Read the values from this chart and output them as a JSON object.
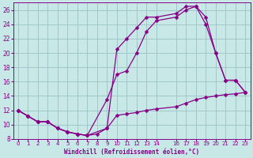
{
  "background_color": "#c8e8e8",
  "grid_color": "#a0c8c8",
  "line_color": "#880088",
  "xlim": [
    -0.5,
    23.5
  ],
  "ylim": [
    8,
    27
  ],
  "yticks": [
    8,
    10,
    12,
    14,
    16,
    18,
    20,
    22,
    24,
    26
  ],
  "xtick_vals": [
    0,
    1,
    2,
    3,
    4,
    5,
    6,
    7,
    8,
    9,
    10,
    11,
    12,
    13,
    14,
    16,
    17,
    18,
    19,
    20,
    21,
    22,
    23
  ],
  "xtick_labels": [
    "0",
    "1",
    "2",
    "3",
    "4",
    "5",
    "6",
    "7",
    "8",
    "9",
    "10",
    "11",
    "12",
    "13",
    "14",
    "16",
    "17",
    "18",
    "19",
    "20",
    "21",
    "22",
    "23"
  ],
  "xlabel": "Windchill (Refroidissement éolien,°C)",
  "line1_x": [
    0,
    1,
    2,
    3,
    4,
    5,
    6,
    7,
    8,
    9,
    10,
    11,
    12,
    13,
    14,
    16,
    17,
    18,
    19,
    20,
    21,
    22,
    23
  ],
  "line1_y": [
    12,
    11.2,
    10.4,
    10.4,
    9.5,
    9.0,
    8.7,
    8.5,
    8.7,
    9.5,
    11.3,
    11.5,
    11.7,
    12.0,
    12.2,
    12.5,
    13.0,
    13.5,
    13.8,
    14.0,
    14.2,
    14.3,
    14.5
  ],
  "line2_x": [
    0,
    1,
    2,
    3,
    4,
    5,
    6,
    7,
    9,
    10,
    11,
    12,
    13,
    14,
    16,
    17,
    18,
    19,
    20,
    21,
    22,
    23
  ],
  "line2_y": [
    12,
    11.2,
    10.4,
    10.4,
    9.5,
    9.0,
    8.7,
    8.5,
    9.5,
    20.5,
    22.0,
    23.5,
    25.0,
    25.0,
    25.5,
    26.5,
    26.5,
    25.0,
    20.0,
    16.2,
    16.2,
    14.5
  ],
  "line3_x": [
    0,
    1,
    2,
    3,
    4,
    5,
    6,
    7,
    9,
    10,
    11,
    12,
    13,
    14,
    16,
    17,
    18,
    19,
    20,
    21,
    22,
    23
  ],
  "line3_y": [
    12,
    11.2,
    10.4,
    10.4,
    9.5,
    9.0,
    8.7,
    8.5,
    13.5,
    17.0,
    17.5,
    20.0,
    23.0,
    24.5,
    25.0,
    26.0,
    26.5,
    24.0,
    20.0,
    16.2,
    16.2,
    14.5
  ]
}
